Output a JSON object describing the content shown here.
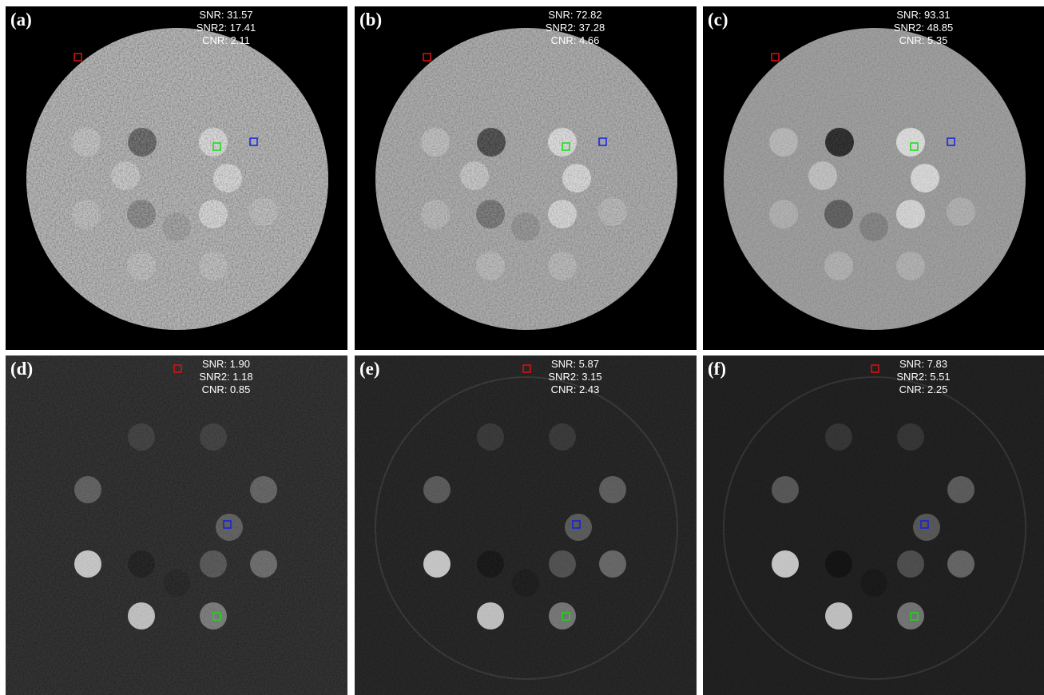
{
  "panels": [
    {
      "label": "(a)",
      "stats": [
        "SNR: 31.57",
        "SNR2: 17.41",
        "CNR: 2.11"
      ]
    },
    {
      "label": "(b)",
      "stats": [
        "SNR: 72.82",
        "SNR2: 37.28",
        "CNR: 4.66"
      ]
    },
    {
      "label": "(c)",
      "stats": [
        "SNR: 93.31",
        "SNR2: 48.85",
        "CNR: 5.35"
      ]
    },
    {
      "label": "(d)",
      "stats": [
        "SNR: 1.90",
        "SNR2: 1.18",
        "CNR: 0.85"
      ]
    },
    {
      "label": "(e)",
      "stats": [
        "SNR: 5.87",
        "SNR2: 3.15",
        "CNR: 2.43"
      ]
    },
    {
      "label": "(f)",
      "stats": [
        "SNR: 7.83",
        "SNR2: 5.51",
        "CNR: 2.25"
      ]
    }
  ]
}
